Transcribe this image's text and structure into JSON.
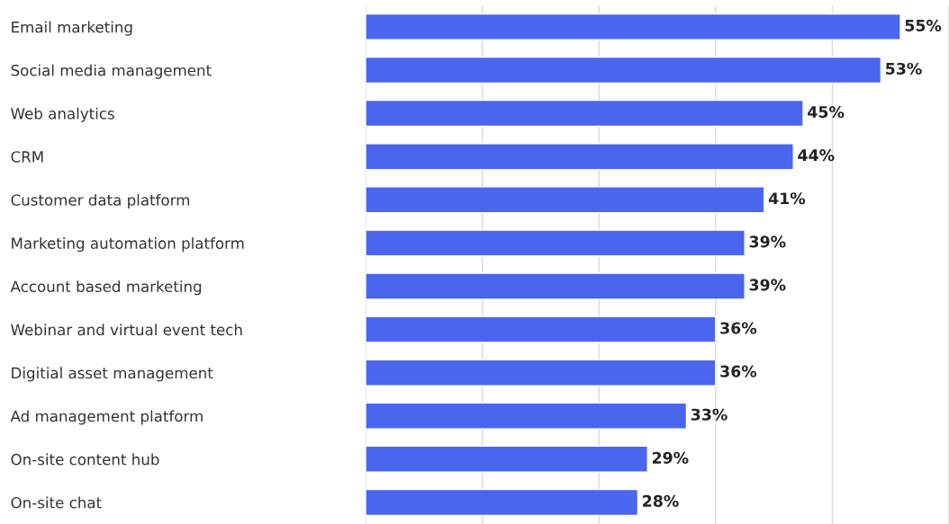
{
  "chart_data": {
    "type": "bar",
    "orientation": "horizontal",
    "categories": [
      "Email marketing",
      "Social media management",
      "Web analytics",
      "CRM",
      "Customer data platform",
      "Marketing automation platform",
      "Account based marketing",
      "Webinar and virtual event tech",
      "Digitial asset management",
      "Ad management platform",
      "On-site content hub",
      "On-site chat"
    ],
    "values": [
      55,
      53,
      45,
      44,
      41,
      39,
      39,
      36,
      36,
      33,
      29,
      28
    ],
    "value_labels": [
      "55%",
      "53%",
      "45%",
      "44%",
      "41%",
      "39%",
      "39%",
      "36%",
      "36%",
      "33%",
      "29%",
      "28%"
    ],
    "color": "#4a66ee",
    "xlim": [
      0,
      60
    ],
    "xticks": [
      {
        "value": 0,
        "label": null
      },
      {
        "value": 12,
        "label": null
      },
      {
        "value": 24,
        "label": null
      },
      {
        "value": 36,
        "label": null
      },
      {
        "value": 48,
        "label": null
      },
      {
        "value": 60,
        "label": null
      }
    ],
    "grid": "x",
    "legend": false
  }
}
